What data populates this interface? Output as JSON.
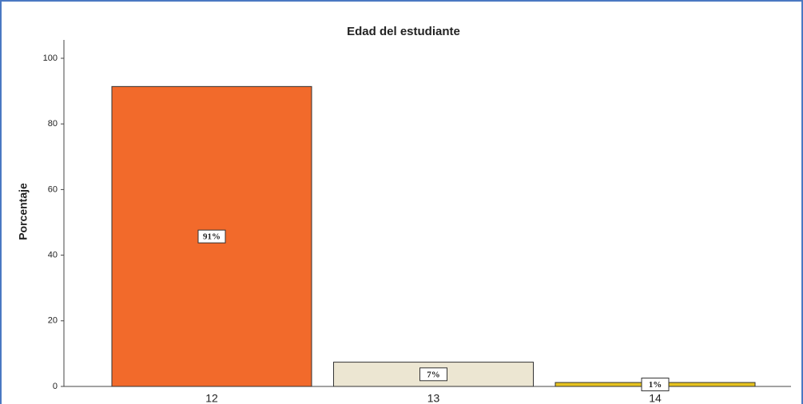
{
  "chart_data": {
    "type": "bar",
    "title": "Edad del estudiante",
    "ylabel": "Porcentaje",
    "categories": [
      "12",
      "13",
      "14"
    ],
    "values": [
      91.4,
      7.4,
      1.2
    ],
    "value_labels": [
      "91%",
      "7%",
      "1%"
    ],
    "colors": [
      "#f26a2b",
      "#ece6d2",
      "#e6c21f"
    ],
    "ylim": [
      0,
      100
    ],
    "yticks": [
      0,
      20,
      40,
      60,
      80,
      100
    ],
    "grid": false
  }
}
